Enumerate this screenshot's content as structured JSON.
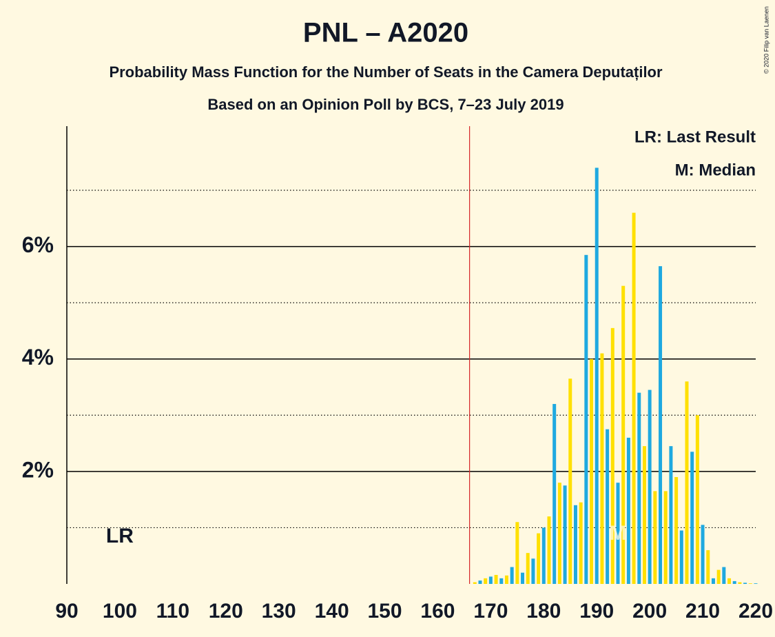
{
  "chart_data": {
    "type": "bar",
    "title": "PNL – A2020",
    "subtitle": "Probability Mass Function for the Number of Seats in the Camera Deputaților",
    "subtitle2": "Based on an Opinion Poll by BCS, 7–23 July 2019",
    "copyright": "© 2020 Filip van Laenen",
    "legend": [
      "LR: Last Result",
      "M: Median"
    ],
    "x": [
      167,
      168,
      169,
      170,
      171,
      172,
      173,
      174,
      175,
      176,
      177,
      178,
      179,
      180,
      181,
      182,
      183,
      184,
      185,
      186,
      187,
      188,
      189,
      190,
      191,
      192,
      193,
      194,
      195,
      196,
      197,
      198,
      199,
      200,
      201,
      202,
      203,
      204,
      205,
      206,
      207,
      208,
      209,
      210,
      211,
      212,
      213,
      214,
      215,
      216,
      217,
      218,
      219,
      220
    ],
    "values": [
      0.03,
      0.06,
      0.1,
      0.13,
      0.16,
      0.1,
      0.15,
      0.3,
      1.1,
      0.2,
      0.55,
      0.45,
      0.9,
      1.0,
      1.2,
      3.2,
      1.8,
      1.75,
      3.65,
      1.4,
      1.45,
      5.85,
      4.0,
      7.4,
      4.1,
      2.75,
      4.55,
      1.8,
      5.3,
      2.6,
      6.6,
      3.4,
      2.45,
      3.45,
      1.65,
      5.65,
      1.65,
      2.45,
      1.9,
      0.95,
      3.6,
      2.35,
      3.0,
      1.05,
      0.6,
      0.1,
      0.25,
      0.3,
      0.1,
      0.05,
      0.03,
      0.02,
      0.01,
      0.01
    ],
    "colors": [
      "#1ea9e0",
      "#ffe000"
    ],
    "xlim": [
      90,
      220
    ],
    "xticks": [
      90,
      100,
      110,
      120,
      130,
      140,
      150,
      160,
      170,
      180,
      190,
      200,
      210,
      220
    ],
    "ylim": [
      0,
      8.14
    ],
    "yticks": [
      {
        "value": 2,
        "label": "2%"
      },
      {
        "value": 4,
        "label": "4%"
      },
      {
        "value": 6,
        "label": "6%"
      }
    ],
    "minor_yticks": [
      1,
      3,
      5,
      7
    ],
    "majority": 166,
    "last_result": {
      "x": 100,
      "label": "LR"
    },
    "median": {
      "x": 194,
      "label": "M"
    }
  }
}
